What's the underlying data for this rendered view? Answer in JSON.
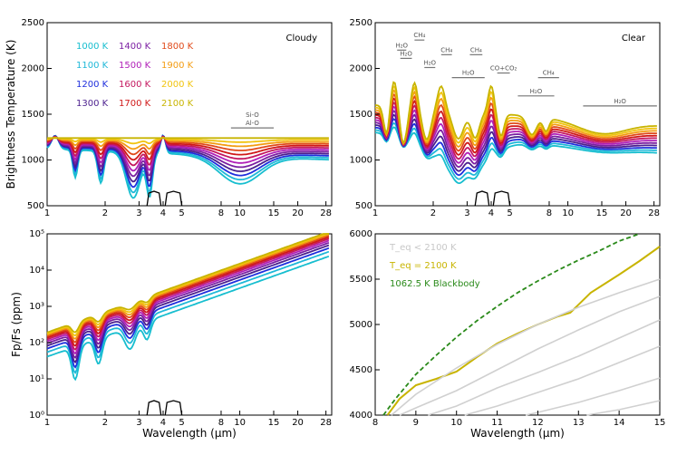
{
  "chart_data": [
    {
      "id": "cloudy",
      "type": "line",
      "panel_label": "Cloudy",
      "ylabel": "Brightness Temperature (K)",
      "xscale": "log",
      "xlim": [
        1,
        30
      ],
      "ylim": [
        500,
        2500
      ],
      "xticks": [
        1,
        2,
        3,
        4,
        5,
        8,
        10,
        15,
        20,
        28
      ],
      "yticks": [
        500,
        1000,
        1500,
        2000,
        2500
      ],
      "legend": [
        {
          "label": "1000 K",
          "color": "#17becf"
        },
        {
          "label": "1100 K",
          "color": "#1fb8d8"
        },
        {
          "label": "1200 K",
          "color": "#1f2fdd"
        },
        {
          "label": "1300 K",
          "color": "#4b1f8e"
        },
        {
          "label": "1400 K",
          "color": "#7b1fa2"
        },
        {
          "label": "1500 K",
          "color": "#b01fb8"
        },
        {
          "label": "1600 K",
          "color": "#c4175f"
        },
        {
          "label": "1700 K",
          "color": "#d01818"
        },
        {
          "label": "1800 K",
          "color": "#e04a1a"
        },
        {
          "label": "1900 K",
          "color": "#f39c12"
        },
        {
          "label": "2000 K",
          "color": "#f1c40f"
        },
        {
          "label": "2100 K",
          "color": "#c8b400"
        }
      ],
      "annotations": [
        {
          "label": "Si-O",
          "x0": 9.0,
          "x1": 15.0,
          "y": 1350
        },
        {
          "label": "Al-O",
          "x0": 9.0,
          "x1": 15.0,
          "y": 1350
        }
      ]
    },
    {
      "id": "clear",
      "type": "line",
      "panel_label": "Clear",
      "xscale": "log",
      "xlim": [
        1,
        30
      ],
      "ylim": [
        500,
        2500
      ],
      "xticks": [
        1,
        2,
        3,
        4,
        5,
        8,
        10,
        15,
        20,
        28
      ],
      "yticks": [
        500,
        1000,
        1500,
        2000,
        2500
      ],
      "annotations": [
        {
          "label": "H₂O",
          "x0": 1.3,
          "x1": 1.45,
          "y": 2200
        },
        {
          "label": "CH₄",
          "x0": 1.6,
          "x1": 1.8,
          "y": 2310
        },
        {
          "label": "H₂O",
          "x0": 1.35,
          "x1": 1.55,
          "y": 2110
        },
        {
          "label": "CH₄",
          "x0": 2.2,
          "x1": 2.5,
          "y": 2150
        },
        {
          "label": "H₂O",
          "x0": 1.8,
          "x1": 2.05,
          "y": 2010
        },
        {
          "label": "CH₄",
          "x0": 3.1,
          "x1": 3.6,
          "y": 2150
        },
        {
          "label": "H₂O",
          "x0": 2.5,
          "x1": 3.7,
          "y": 1900
        },
        {
          "label": "CO+CO₂",
          "x0": 4.3,
          "x1": 5.0,
          "y": 1950
        },
        {
          "label": "CH₄",
          "x0": 7.0,
          "x1": 9.0,
          "y": 1900
        },
        {
          "label": "H₂O",
          "x0": 5.5,
          "x1": 8.5,
          "y": 1700
        },
        {
          "label": "H₂O",
          "x0": 12.0,
          "x1": 29.0,
          "y": 1590
        }
      ]
    },
    {
      "id": "contrast",
      "type": "line",
      "ylabel": "Fp/Fs (ppm)",
      "xlabel": "Wavelength (μm)",
      "xscale": "log",
      "yscale": "log",
      "xlim": [
        1,
        30
      ],
      "ylim": [
        1,
        100000
      ],
      "xticks": [
        1,
        2,
        3,
        4,
        5,
        8,
        10,
        15,
        20,
        28
      ],
      "yticks": [
        "10⁰",
        "10¹",
        "10²",
        "10³",
        "10⁴",
        "10⁵"
      ]
    },
    {
      "id": "zoom",
      "type": "line",
      "xlabel": "Wavelength (μm)",
      "xlim": [
        8,
        15
      ],
      "ylim": [
        4000,
        6000
      ],
      "xticks": [
        8,
        9,
        10,
        11,
        12,
        13,
        14,
        15
      ],
      "yticks": [
        4000,
        4500,
        5000,
        5500,
        6000
      ],
      "legend": [
        {
          "label": "T_eq < 2100 K",
          "color": "#c8c8c8"
        },
        {
          "label": "T_eq = 2100 K",
          "color": "#c8b400"
        },
        {
          "label": "1062.5 K Blackbody",
          "color": "#2a8a1a"
        }
      ],
      "series": [
        {
          "name": "T_eq = 2100 K",
          "x": [
            8.3,
            8.6,
            9.0,
            9.5,
            10.0,
            10.5,
            11.0,
            11.5,
            12.0,
            12.5,
            12.8,
            13.3,
            14.0,
            14.5,
            15.0
          ],
          "y": [
            4000,
            4180,
            4330,
            4400,
            4480,
            4640,
            4790,
            4900,
            5000,
            5090,
            5130,
            5350,
            5550,
            5700,
            5860
          ]
        },
        {
          "name": "1062.5 K Blackbody",
          "x": [
            8.2,
            8.5,
            9.0,
            9.5,
            10.0,
            10.5,
            11.0,
            11.5,
            12.0,
            12.5,
            13.0,
            13.5,
            14.0,
            14.5
          ],
          "y": [
            4000,
            4180,
            4450,
            4660,
            4860,
            5040,
            5200,
            5350,
            5480,
            5600,
            5710,
            5810,
            5920,
            6000
          ]
        },
        {
          "name": "gray1",
          "x": [
            8.4,
            9,
            10,
            11,
            12,
            13,
            14,
            15
          ],
          "y": [
            4000,
            4230,
            4520,
            4780,
            5000,
            5190,
            5350,
            5500
          ]
        },
        {
          "name": "gray2",
          "x": [
            8.6,
            9,
            10,
            11,
            12,
            13,
            14,
            15
          ],
          "y": [
            4000,
            4080,
            4270,
            4500,
            4730,
            4940,
            5140,
            5310
          ]
        },
        {
          "name": "gray3",
          "x": [
            9.3,
            10,
            11,
            12,
            13,
            14,
            15
          ],
          "y": [
            4000,
            4100,
            4300,
            4470,
            4650,
            4850,
            5050
          ]
        },
        {
          "name": "gray4",
          "x": [
            10.2,
            11,
            12,
            13,
            14,
            15
          ],
          "y": [
            4000,
            4100,
            4250,
            4400,
            4580,
            4760
          ]
        },
        {
          "name": "gray5",
          "x": [
            11.7,
            12,
            13,
            14,
            15
          ],
          "y": [
            4000,
            4030,
            4140,
            4270,
            4410
          ]
        },
        {
          "name": "gray6",
          "x": [
            13.2,
            14,
            15
          ],
          "y": [
            4000,
            4060,
            4160
          ]
        }
      ]
    }
  ]
}
